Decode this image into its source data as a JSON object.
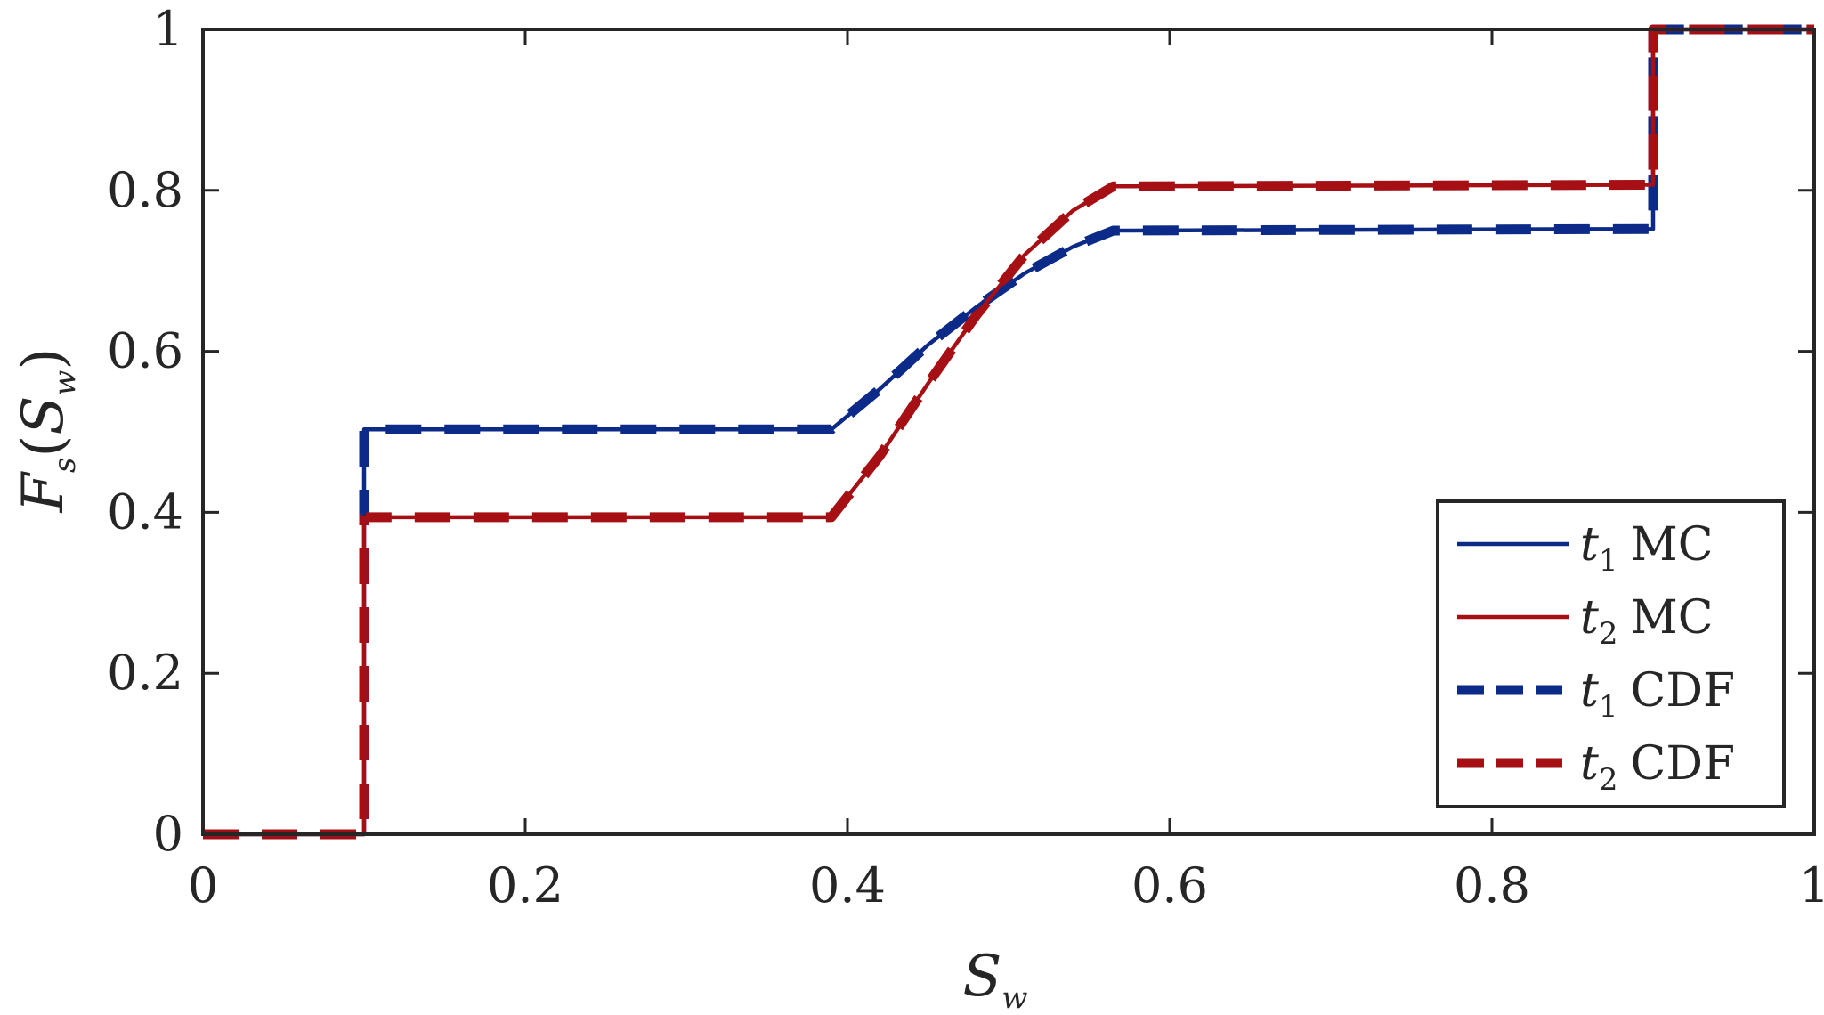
{
  "chart_data": {
    "type": "line",
    "xlabel": {
      "main": "S",
      "sub": "w"
    },
    "ylabel": {
      "main": "F",
      "sub": "s",
      "paren_open": "(",
      "arg_main": "S",
      "arg_sub": "w",
      "paren_close": ")"
    },
    "xlim": [
      0,
      1
    ],
    "ylim": [
      0,
      1
    ],
    "xticks": [
      0,
      0.2,
      0.4,
      0.6,
      0.8,
      1
    ],
    "yticks": [
      0,
      0.2,
      0.4,
      0.6,
      0.8,
      1
    ],
    "xtick_labels": [
      "0",
      "0.2",
      "0.4",
      "0.6",
      "0.8",
      "1"
    ],
    "ytick_labels": [
      "0",
      "0.2",
      "0.4",
      "0.6",
      "0.8",
      "1"
    ],
    "grid": false,
    "legend_placement": "bottom-right",
    "series": [
      {
        "name": "t1 MC",
        "legend": {
          "var": "t",
          "sub": "1",
          "text": "MC"
        },
        "color": "#0c2a88",
        "style": "solid",
        "x": [
          0,
          0.1,
          0.1,
          0.39,
          0.42,
          0.45,
          0.48,
          0.51,
          0.54,
          0.565,
          0.9,
          0.9,
          1.0
        ],
        "y": [
          0,
          0,
          0.503,
          0.503,
          0.553,
          0.608,
          0.655,
          0.697,
          0.73,
          0.75,
          0.752,
          1.0,
          1.0
        ]
      },
      {
        "name": "t2 MC",
        "legend": {
          "var": "t",
          "sub": "2",
          "text": "MC"
        },
        "color": "#a61015",
        "style": "solid",
        "x": [
          0,
          0.1,
          0.1,
          0.39,
          0.42,
          0.45,
          0.48,
          0.51,
          0.54,
          0.565,
          0.9,
          0.9,
          1.0
        ],
        "y": [
          0,
          0,
          0.394,
          0.394,
          0.47,
          0.56,
          0.645,
          0.72,
          0.775,
          0.805,
          0.807,
          1.0,
          1.0
        ]
      },
      {
        "name": "t1 CDF",
        "legend": {
          "var": "t",
          "sub": "1",
          "text": "CDF"
        },
        "color": "#0c2a88",
        "style": "dashed",
        "x": [
          0,
          0.1,
          0.1,
          0.39,
          0.42,
          0.45,
          0.48,
          0.51,
          0.54,
          0.565,
          0.9,
          0.9,
          1.0
        ],
        "y": [
          0,
          0,
          0.503,
          0.503,
          0.553,
          0.608,
          0.655,
          0.697,
          0.73,
          0.75,
          0.752,
          1.0,
          1.0
        ]
      },
      {
        "name": "t2 CDF",
        "legend": {
          "var": "t",
          "sub": "2",
          "text": "CDF"
        },
        "color": "#a61015",
        "style": "dashed",
        "x": [
          0,
          0.1,
          0.1,
          0.39,
          0.42,
          0.45,
          0.48,
          0.51,
          0.54,
          0.565,
          0.9,
          0.9,
          1.0
        ],
        "y": [
          0,
          0,
          0.394,
          0.394,
          0.47,
          0.56,
          0.645,
          0.72,
          0.775,
          0.805,
          0.807,
          1.0,
          1.0
        ]
      }
    ]
  }
}
